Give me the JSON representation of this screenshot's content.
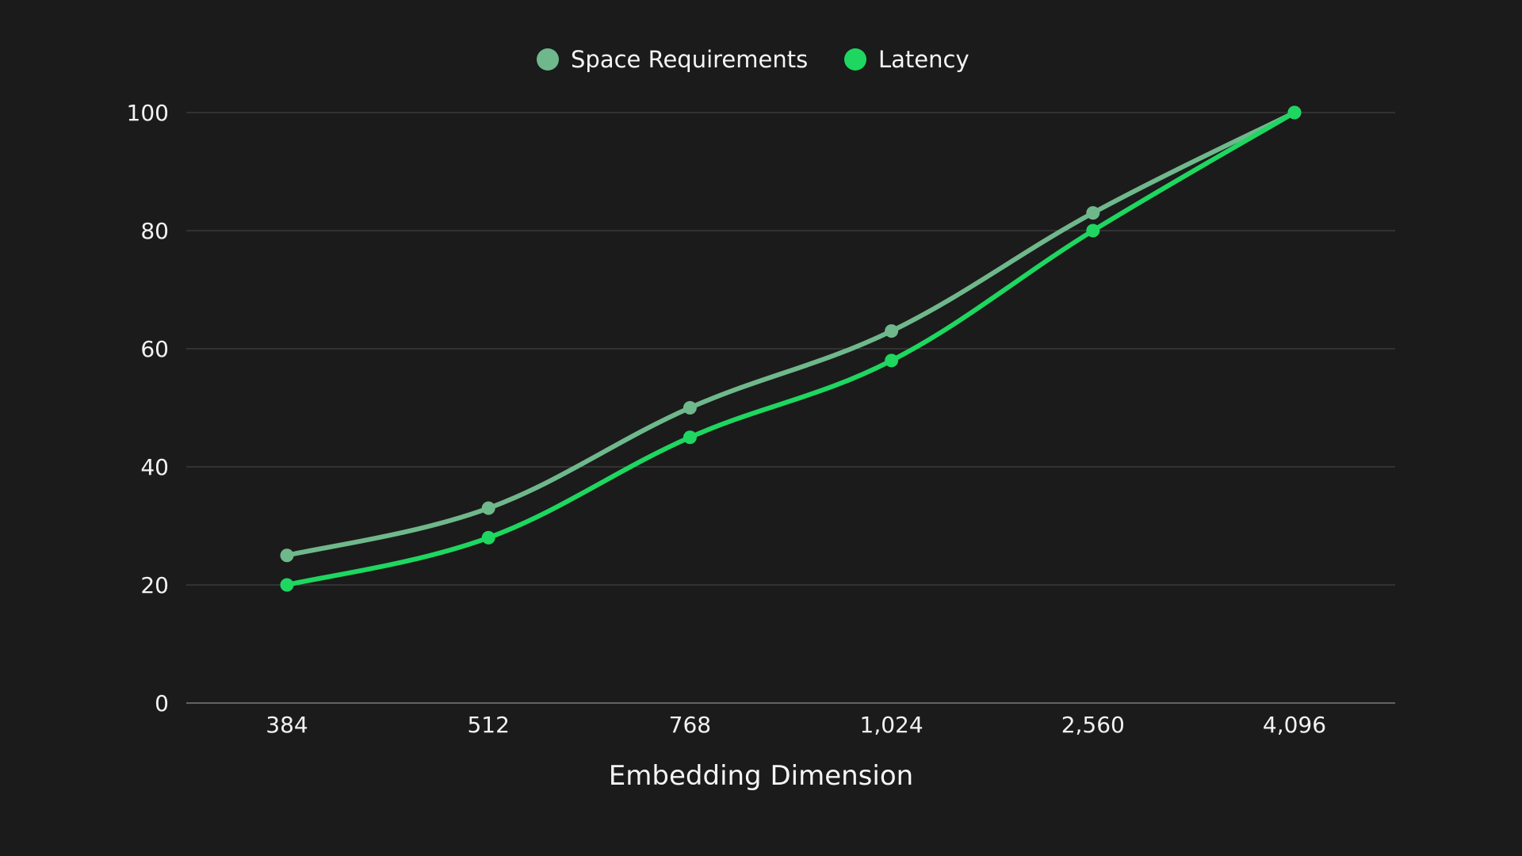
{
  "colors": {
    "background": "#1b1b1b",
    "grid": "#4a4a4a",
    "axis": "#7a7a7a",
    "space_requirements": "#6fb88c",
    "latency": "#1ed760"
  },
  "chart_data": {
    "type": "line",
    "title": "",
    "xlabel": "Embedding Dimension",
    "ylabel": "",
    "categories": [
      "384",
      "512",
      "768",
      "1,024",
      "2,560",
      "4,096"
    ],
    "ylim": [
      0,
      100
    ],
    "yticks": [
      0,
      20,
      40,
      60,
      80,
      100
    ],
    "grid": true,
    "legend_position": "top-center",
    "series": [
      {
        "name": "Space Requirements",
        "color": "#6fb88c",
        "values": [
          25,
          33,
          50,
          63,
          83,
          100
        ]
      },
      {
        "name": "Latency",
        "color": "#1ed760",
        "values": [
          20,
          28,
          45,
          58,
          80,
          100
        ]
      }
    ]
  }
}
